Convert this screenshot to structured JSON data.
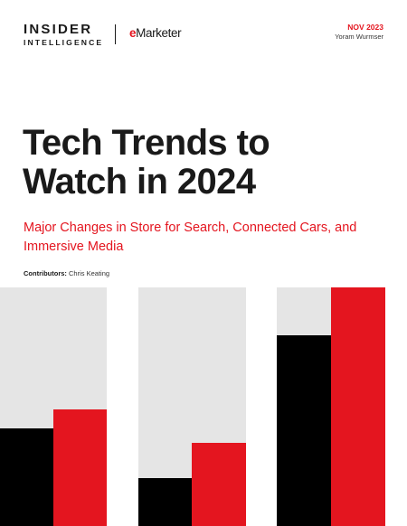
{
  "header": {
    "brand_line1": "INSIDER",
    "brand_line2": "INTELLIGENCE",
    "partner_mark": "e",
    "partner_name": "Marketer",
    "date": "NOV 2023",
    "author": "Yoram Wurmser"
  },
  "cover": {
    "title_line1": "Tech Trends to",
    "title_line2": "Watch in 2024",
    "subtitle": "Major Changes in Store for Search, Connected Cars, and Immersive Media",
    "contributors_label": "Contributors:",
    "contributors_name": "Chris Keating"
  },
  "colors": {
    "brand_red": "#e4151f",
    "ink": "#1a1a1a",
    "bar_background": "#e5e5e5",
    "bar_black": "#000000"
  },
  "decorative_bars": {
    "groups": [
      {
        "black_level": 0.41,
        "red_level": 0.49
      },
      {
        "black_level": 0.2,
        "red_level": 0.35
      },
      {
        "black_level": 0.8,
        "red_level": 1.0
      }
    ]
  }
}
